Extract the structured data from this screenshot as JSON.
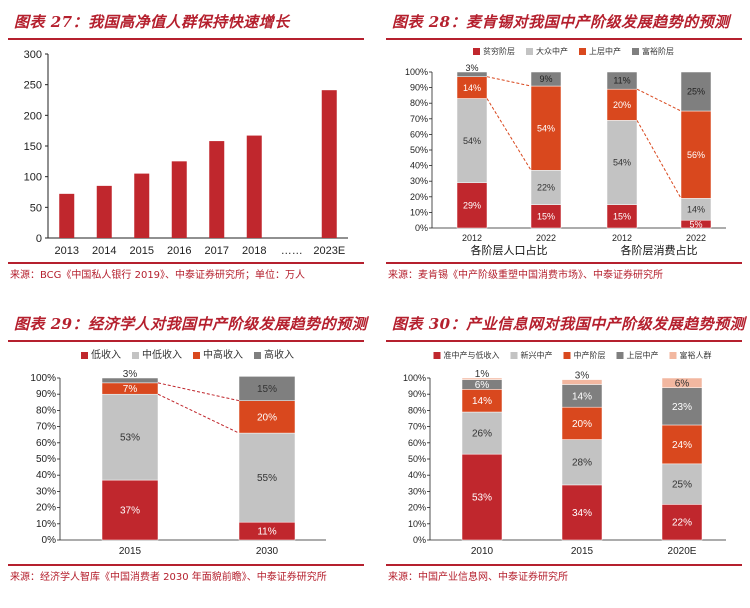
{
  "panels": {
    "p27": {
      "title": "图表 27：我国高净值人群保持快速增长",
      "source": "来源：BCG《中国私人银行 2019》、中泰证券研究所；单位：万人"
    },
    "p28": {
      "title": "图表 28：麦肯锡对我国中产阶级发展趋势的预测",
      "source": "来源：麦肯锡《中产阶级重塑中国消费市场》、中泰证券研究所"
    },
    "p29": {
      "title": "图表 29：经济学人对我国中产阶级发展趋势的预测",
      "source": "来源：经济学人智库《中国消费者 2030 年面貌前瞻》、中泰证券研究所"
    },
    "p30": {
      "title": "图表 30：产业信息网对我国中产阶级发展趋势预测",
      "source": "来源：中国产业信息网、中泰证券研究所"
    }
  },
  "colors": {
    "red": "#c0272d",
    "orange": "#d9481e",
    "gray": "#c3c3c3",
    "dark": "#7f7f7f",
    "pink": "#f2b7a0",
    "accent": "#b5202e"
  },
  "chart_data": [
    {
      "id": "p27",
      "type": "bar",
      "categories": [
        "2013",
        "2014",
        "2015",
        "2016",
        "2017",
        "2018",
        "……",
        "2023E"
      ],
      "values": [
        72,
        85,
        105,
        125,
        158,
        167,
        null,
        241
      ],
      "ylim": [
        0,
        300
      ],
      "yticks": [
        "0",
        "50",
        "100",
        "150",
        "200",
        "250",
        "300"
      ],
      "grid": false,
      "legend": []
    },
    {
      "id": "p28",
      "type": "bar",
      "stacked": true,
      "legend_position": "top",
      "legend": [
        "贫穷阶层",
        "大众中产",
        "上层中产",
        "富裕阶层"
      ],
      "yticks": [
        "0%",
        "10%",
        "20%",
        "30%",
        "40%",
        "50%",
        "60%",
        "70%",
        "80%",
        "90%",
        "100%"
      ],
      "categories": [
        "2012",
        "2022",
        "2012",
        "2022"
      ],
      "groups": [
        "各阶层人口占比",
        "各阶层消费占比"
      ],
      "series": [
        {
          "name": "贫穷阶层",
          "values": [
            29,
            15,
            15,
            5
          ],
          "labels": [
            "29%",
            "15%",
            "15%",
            "5%"
          ]
        },
        {
          "name": "大众中产",
          "values": [
            54,
            22,
            54,
            14
          ],
          "labels": [
            "54%",
            "22%",
            "54%",
            "14%"
          ]
        },
        {
          "name": "上层中产",
          "values": [
            14,
            54,
            20,
            56
          ],
          "labels": [
            "14%",
            "54%",
            "20%",
            "56%"
          ]
        },
        {
          "name": "富裕阶层",
          "values": [
            3,
            9,
            11,
            25
          ],
          "labels": [
            "3%",
            "9%",
            "11%",
            "25%"
          ]
        }
      ]
    },
    {
      "id": "p29",
      "type": "bar",
      "stacked": true,
      "legend_position": "top",
      "legend": [
        "低收入",
        "中低收入",
        "中高收入",
        "高收入"
      ],
      "yticks": [
        "0%",
        "10%",
        "20%",
        "30%",
        "40%",
        "50%",
        "60%",
        "70%",
        "80%",
        "90%",
        "100%"
      ],
      "categories": [
        "2015",
        "2030"
      ],
      "series": [
        {
          "name": "低收入",
          "values": [
            37,
            11
          ],
          "labels": [
            "37%",
            "11%"
          ]
        },
        {
          "name": "中低收入",
          "values": [
            53,
            55
          ],
          "labels": [
            "53%",
            "55%"
          ]
        },
        {
          "name": "中高收入",
          "values": [
            7,
            20
          ],
          "labels": [
            "7%",
            "20%"
          ]
        },
        {
          "name": "高收入",
          "values": [
            3,
            15
          ],
          "labels": [
            "3%",
            "15%"
          ]
        }
      ]
    },
    {
      "id": "p30",
      "type": "bar",
      "stacked": true,
      "legend_position": "top",
      "legend": [
        "准中产与低收入",
        "新兴中产",
        "中产阶层",
        "上层中产",
        "富裕人群"
      ],
      "yticks": [
        "0%",
        "10%",
        "20%",
        "30%",
        "40%",
        "50%",
        "60%",
        "70%",
        "80%",
        "90%",
        "100%"
      ],
      "categories": [
        "2010",
        "2015",
        "2020E"
      ],
      "series": [
        {
          "name": "准中产与低收入",
          "values": [
            53,
            34,
            22
          ],
          "labels": [
            "53%",
            "34%",
            "22%"
          ]
        },
        {
          "name": "新兴中产",
          "values": [
            26,
            28,
            25
          ],
          "labels": [
            "26%",
            "28%",
            "25%"
          ]
        },
        {
          "name": "中产阶层",
          "values": [
            14,
            20,
            24
          ],
          "labels": [
            "14%",
            "20%",
            "24%"
          ]
        },
        {
          "name": "上层中产",
          "values": [
            6,
            14,
            23
          ],
          "labels": [
            "6%",
            "14%",
            "23%"
          ]
        },
        {
          "name": "富裕人群",
          "values": [
            1,
            3,
            6
          ],
          "labels": [
            "1%",
            "3%",
            "6%"
          ]
        }
      ]
    }
  ]
}
